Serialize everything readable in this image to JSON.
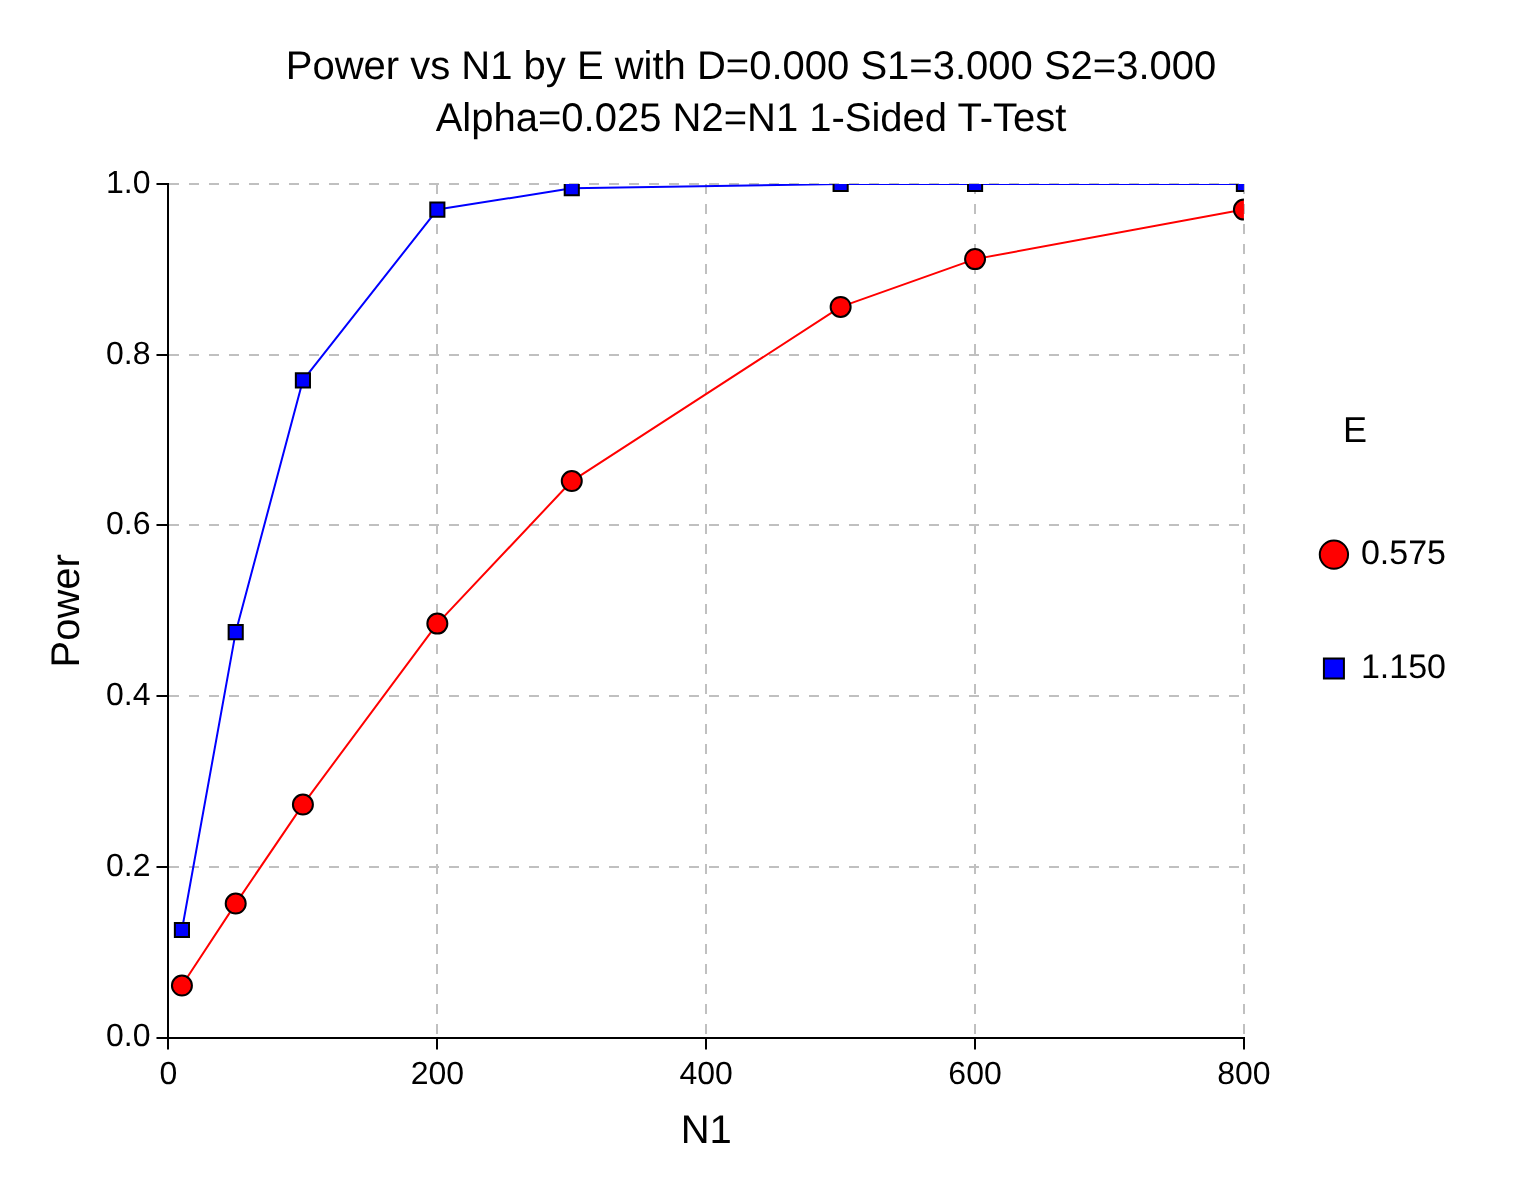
{
  "chart_data": {
    "type": "line",
    "title": "Power vs N1 by E with D=0.000 S1=3.000 S2=3.000",
    "subtitle": "Alpha=0.025 N2=N1 1-Sided T-Test",
    "xlabel": "N1",
    "ylabel": "Power",
    "legend_title": "E",
    "x": [
      10,
      50,
      100,
      200,
      300,
      500,
      600,
      800
    ],
    "series": [
      {
        "name": "0.575",
        "color": "#ff0000",
        "marker": "circle",
        "values": [
          0.061,
          0.157,
          0.273,
          0.485,
          0.652,
          0.856,
          0.912,
          0.97
        ]
      },
      {
        "name": "1.150",
        "color": "#0000ff",
        "marker": "square",
        "values": [
          0.126,
          0.475,
          0.77,
          0.97,
          0.995,
          1.0,
          1.0,
          1.0
        ]
      }
    ],
    "xlim": [
      0,
      800
    ],
    "xticks": [
      0,
      200,
      400,
      600,
      800
    ],
    "ylim": [
      0,
      1
    ],
    "yticks": [
      {
        "value": 0,
        "label": "0.0"
      },
      {
        "value": 0.2,
        "label": "0.2"
      },
      {
        "value": 0.4,
        "label": "0.4"
      },
      {
        "value": 0.6,
        "label": "0.6"
      },
      {
        "value": 0.8,
        "label": "0.8"
      },
      {
        "value": 1,
        "label": "1.0"
      }
    ],
    "grid": true,
    "legend": "right",
    "line_style": "solid"
  }
}
